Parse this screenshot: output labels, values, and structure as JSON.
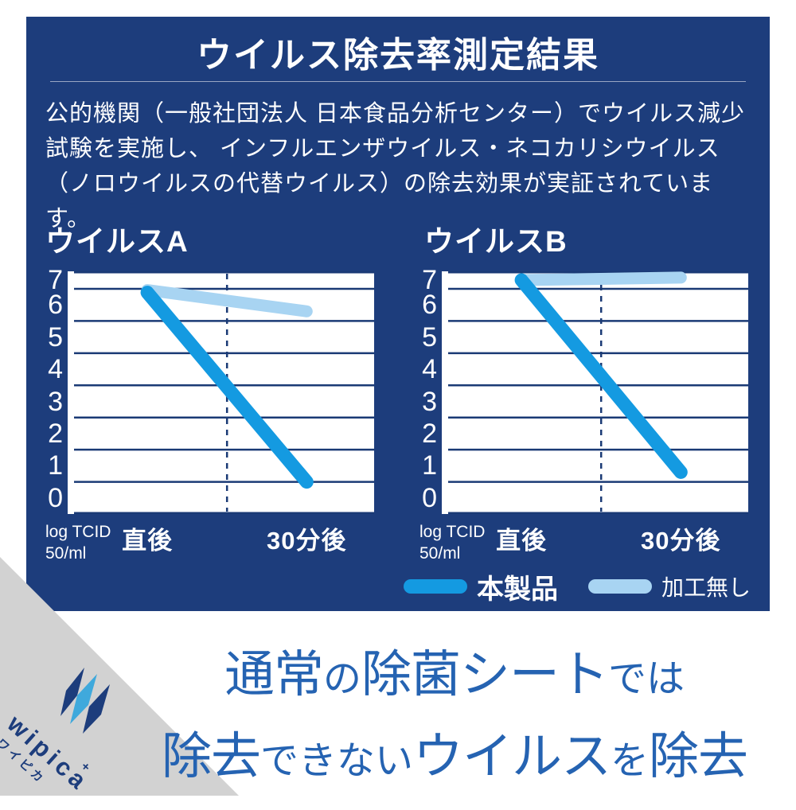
{
  "colors": {
    "card_bg": "#1d3d7c",
    "grid": "#1a3a75",
    "product_blue": "#149ae1",
    "untreated_blue": "#a8d4f2",
    "headline_blue": "#2563b2",
    "corner_gray": "#d2d2d2",
    "logo_navy": "#1d3d7c",
    "logo_lightblue": "#3fa9dc"
  },
  "header": {
    "title": "ウイルス除去率測定結果"
  },
  "intro": {
    "lines": [
      "公的機関（一般社団法人 日本食品分析センター）でウイルス減少",
      "試験を実施し、 インフルエンザウイルス・ネコカリシウイルス",
      "（ノロウイルスの代替ウイルス）の除去効果が実証されています。"
    ]
  },
  "chart_data": [
    {
      "type": "line",
      "title": "ウイルスA",
      "categories": [
        "直後",
        "30分後"
      ],
      "series": [
        {
          "name": "本製品",
          "values": [
            6.5,
            0.5
          ],
          "color": "#149ae1"
        },
        {
          "name": "加工無し",
          "values": [
            6.6,
            5.8
          ],
          "color": "#a8d4f2"
        }
      ],
      "ylabel": "log TCID 50/ml",
      "yticks": [
        7,
        6,
        5,
        4,
        3,
        2,
        1,
        0
      ],
      "ylim": [
        0,
        7.5
      ],
      "grid": true,
      "legend_position": "below-right"
    },
    {
      "type": "line",
      "title": "ウイルスB",
      "categories": [
        "直後",
        "30分後"
      ],
      "series": [
        {
          "name": "本製品",
          "values": [
            7.0,
            0.8
          ],
          "color": "#149ae1"
        },
        {
          "name": "加工無し",
          "values": [
            7.0,
            7.1
          ],
          "color": "#a8d4f2"
        }
      ],
      "ylabel": "log TCID 50/ml",
      "yticks": [
        7,
        6,
        5,
        4,
        3,
        2,
        1,
        0
      ],
      "ylim": [
        0,
        7.5
      ],
      "grid": true,
      "legend_position": "below-right"
    }
  ],
  "axis_unit": {
    "line1": "log TCID",
    "line2": "50/ml"
  },
  "legend": [
    {
      "label": "本製品",
      "color": "#149ae1"
    },
    {
      "label": "加工無し",
      "color": "#a8d4f2"
    }
  ],
  "headline": {
    "line1": [
      {
        "text": "通常",
        "emph": true
      },
      {
        "text": "の",
        "emph": false
      },
      {
        "text": "除菌シート",
        "emph": true
      },
      {
        "text": "では",
        "emph": false
      }
    ],
    "line2": [
      {
        "text": "除去",
        "emph": true
      },
      {
        "text": "できない",
        "emph": false
      },
      {
        "text": "ウイルス",
        "emph": true
      },
      {
        "text": "を",
        "emph": false
      },
      {
        "text": "除去",
        "emph": true
      }
    ]
  },
  "logo": {
    "name": "wipica",
    "kana": "ワイピカ",
    "plus_mark": "+"
  }
}
